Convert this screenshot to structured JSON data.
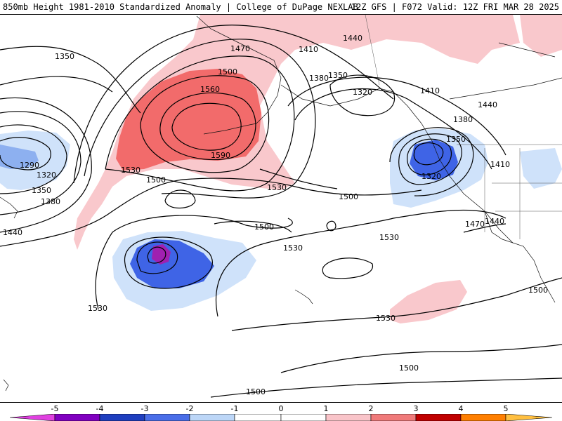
{
  "header": {
    "title": "850mb Height 1981-2010 Standardized Anomaly | College of DuPage NEXLAB",
    "run_info": "12Z GFS | F072 Valid: 12Z FRI MAR 28 2025"
  },
  "contour_labels": [
    {
      "id": "c1350w",
      "text": "1350"
    },
    {
      "id": "c1470n",
      "text": "1470"
    },
    {
      "id": "c1440n",
      "text": "1440"
    },
    {
      "id": "c1410n",
      "text": "1410"
    },
    {
      "id": "c1380a",
      "text": "1380"
    },
    {
      "id": "c1350a",
      "text": "1350"
    },
    {
      "id": "c1320a",
      "text": "1320"
    },
    {
      "id": "c1410e",
      "text": "1410"
    },
    {
      "id": "c1440e",
      "text": "1440"
    },
    {
      "id": "c1380e",
      "text": "1380"
    },
    {
      "id": "c1350e",
      "text": "1350"
    },
    {
      "id": "c1320e",
      "text": "1320"
    },
    {
      "id": "c1410f",
      "text": "1410"
    },
    {
      "id": "c1500r",
      "text": "1500"
    },
    {
      "id": "c1560",
      "text": "1560"
    },
    {
      "id": "c1590",
      "text": "1590"
    },
    {
      "id": "c1530r",
      "text": "1530"
    },
    {
      "id": "c1500l",
      "text": "1500"
    },
    {
      "id": "c1530m",
      "text": "1530"
    },
    {
      "id": "c1290",
      "text": "1290"
    },
    {
      "id": "c1320w",
      "text": "1320"
    },
    {
      "id": "c1350w2",
      "text": "1350"
    },
    {
      "id": "c1380w",
      "text": "1380"
    },
    {
      "id": "c1440w",
      "text": "1440"
    },
    {
      "id": "c1500c",
      "text": "1500"
    },
    {
      "id": "c1500m",
      "text": "1500"
    },
    {
      "id": "c1530c",
      "text": "1530"
    },
    {
      "id": "c1530e",
      "text": "1530"
    },
    {
      "id": "c1470s",
      "text": "1470"
    },
    {
      "id": "c1440s",
      "text": "1440"
    },
    {
      "id": "c1530s",
      "text": "1530"
    },
    {
      "id": "c1530sw",
      "text": "1530"
    },
    {
      "id": "c1500se",
      "text": "1500"
    },
    {
      "id": "c1500b",
      "text": "1500"
    },
    {
      "id": "c1500bl",
      "text": "1500"
    }
  ],
  "colorbar": {
    "ticks": [
      "-5",
      "-4",
      "-3",
      "-2",
      "-1",
      "0",
      "1",
      "2",
      "3",
      "4",
      "5"
    ],
    "colors": [
      "#e040e0",
      "#8000c0",
      "#1f3fbf",
      "#4a6ee8",
      "#bcd6f7",
      "#ffffff",
      "#ffffff",
      "#f9c4c9",
      "#f07a7a",
      "#c00000",
      "#ff7f00",
      "#ffbf3f"
    ]
  },
  "anomaly_colors": {
    "strong_negative": "#3f64e6",
    "moderate_negative": "#8db0f0",
    "weak_negative": "#cfe2fa",
    "extreme_negative": "#a020b0",
    "weak_positive": "#f9c8cc",
    "strong_positive": "#f26b6b"
  }
}
